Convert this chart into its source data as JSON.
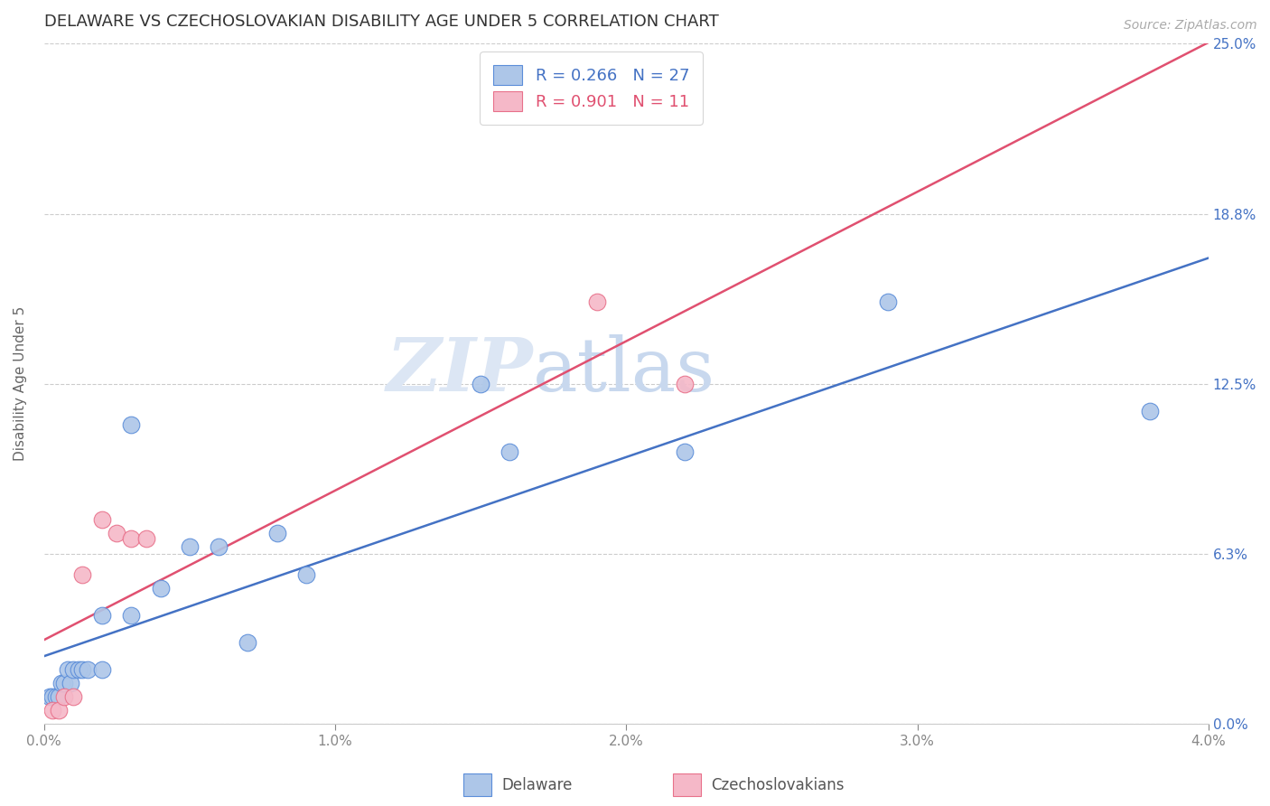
{
  "title": "DELAWARE VS CZECHOSLOVAKIAN DISABILITY AGE UNDER 5 CORRELATION CHART",
  "source": "Source: ZipAtlas.com",
  "ylabel": "Disability Age Under 5",
  "watermark_zip": "ZIP",
  "watermark_atlas": "atlas",
  "legend": {
    "delaware_r": "R = 0.266",
    "delaware_n": "N = 27",
    "czech_r": "R = 0.901",
    "czech_n": "N = 11"
  },
  "delaware_color": "#adc6e8",
  "delaware_edge_color": "#5b8dd9",
  "delaware_line_color": "#4472c4",
  "czech_color": "#f5b8c8",
  "czech_edge_color": "#e8708a",
  "czech_line_color": "#e05070",
  "background_color": "#ffffff",
  "delaware_x": [
    0.0002,
    0.0003,
    0.0004,
    0.0005,
    0.0006,
    0.0007,
    0.0008,
    0.0009,
    0.001,
    0.0012,
    0.0013,
    0.0015,
    0.002,
    0.002,
    0.003,
    0.003,
    0.004,
    0.005,
    0.006,
    0.007,
    0.008,
    0.009,
    0.015,
    0.016,
    0.022,
    0.029,
    0.038
  ],
  "delaware_y": [
    0.01,
    0.01,
    0.01,
    0.01,
    0.015,
    0.015,
    0.02,
    0.015,
    0.02,
    0.02,
    0.02,
    0.02,
    0.02,
    0.04,
    0.04,
    0.11,
    0.05,
    0.065,
    0.065,
    0.03,
    0.07,
    0.055,
    0.125,
    0.1,
    0.1,
    0.155,
    0.115
  ],
  "czech_x": [
    0.0003,
    0.0005,
    0.0007,
    0.001,
    0.0013,
    0.002,
    0.0025,
    0.003,
    0.0035,
    0.019,
    0.022
  ],
  "czech_y": [
    0.005,
    0.005,
    0.01,
    0.01,
    0.055,
    0.075,
    0.07,
    0.068,
    0.068,
    0.155,
    0.125
  ],
  "xlim": [
    0.0,
    0.04
  ],
  "ylim": [
    0.0,
    0.25
  ],
  "xticks": [
    0.0,
    0.01,
    0.02,
    0.03,
    0.04
  ],
  "xtick_labels": [
    "0.0%",
    "1.0%",
    "2.0%",
    "3.0%",
    "4.0%"
  ],
  "yticks": [
    0.0,
    0.0625,
    0.125,
    0.1875,
    0.25
  ],
  "ytick_labels_right": [
    "0.0%",
    "6.3%",
    "12.5%",
    "18.8%",
    "25.0%"
  ],
  "title_fontsize": 13,
  "axis_label_fontsize": 11,
  "tick_fontsize": 11,
  "scatter_size": 180
}
